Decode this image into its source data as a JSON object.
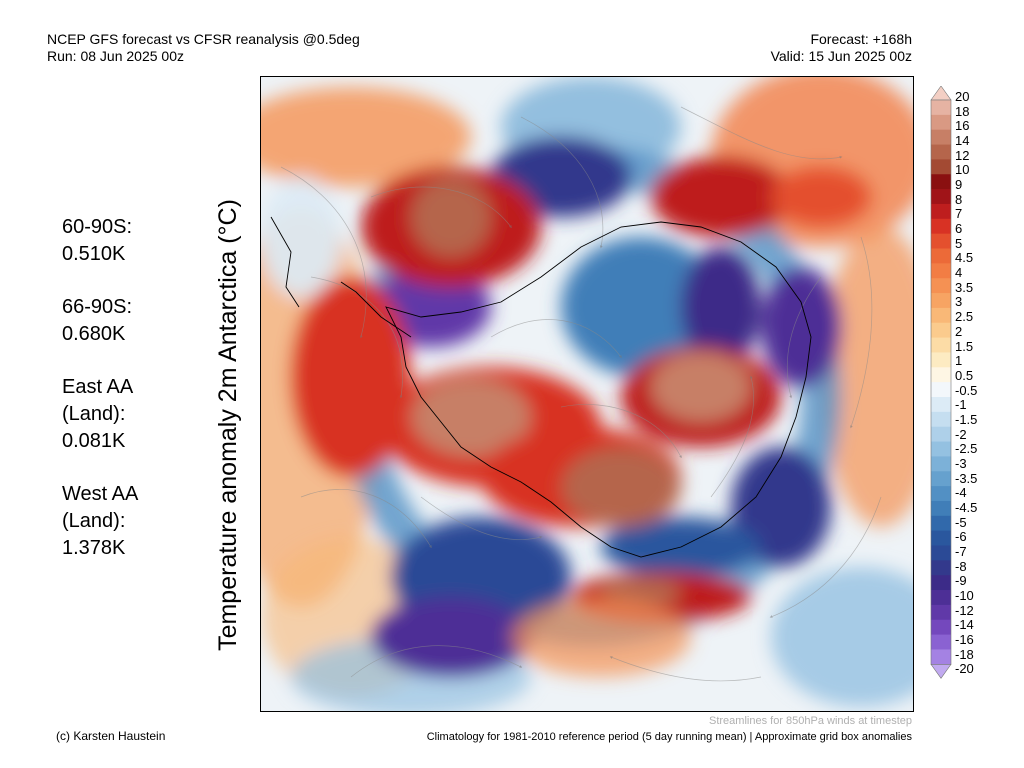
{
  "header": {
    "title": "NCEP GFS forecast vs CFSR reanalysis @0.5deg",
    "run": "Run: 08 Jun 2025 00z",
    "forecast": "Forecast: +168h",
    "valid": "Valid: 15 Jun 2025 00z"
  },
  "axis_title": "Temperature anomaly 2m Antarctica (°C)",
  "stats": [
    {
      "region": [
        "60-90S:"
      ],
      "value": "0.510K"
    },
    {
      "region": [
        "66-90S:"
      ],
      "value": "0.680K"
    },
    {
      "region": [
        "East AA",
        "(Land):"
      ],
      "value": "0.081K"
    },
    {
      "region": [
        "West AA",
        "(Land):"
      ],
      "value": "1.378K"
    }
  ],
  "colorbar": {
    "labels": [
      "20",
      "18",
      "16",
      "14",
      "12",
      "10",
      "9",
      "8",
      "7",
      "6",
      "5",
      "4.5",
      "4",
      "3.5",
      "3",
      "2.5",
      "2",
      "1.5",
      "1",
      "0.5",
      "-0.5",
      "-1",
      "-1.5",
      "-2",
      "-2.5",
      "-3",
      "-3.5",
      "-4",
      "-4.5",
      "-5",
      "-6",
      "-7",
      "-8",
      "-9",
      "-10",
      "-12",
      "-14",
      "-16",
      "-18",
      "-20"
    ],
    "colors": [
      "#f3cfc4",
      "#e6b3a3",
      "#d99983",
      "#c77f66",
      "#b5654b",
      "#a34a33",
      "#8a1010",
      "#a01418",
      "#be1e1e",
      "#d83224",
      "#e4502e",
      "#ec6a38",
      "#f27d44",
      "#f59153",
      "#f7a463",
      "#f9b877",
      "#fbcb8d",
      "#fcdca6",
      "#fdebc2",
      "#fef6e4",
      "#f3f7fb",
      "#dcebf6",
      "#c5def0",
      "#aed0e9",
      "#94c1e1",
      "#7cb1d8",
      "#66a1ce",
      "#5290c4",
      "#407eb8",
      "#3169ab",
      "#2a579e",
      "#2b4a96",
      "#33398c",
      "#3c2b88",
      "#4d2f96",
      "#6039a8",
      "#7448bd",
      "#8a62d2",
      "#a482e3",
      "#c1aaf0"
    ]
  },
  "footer": {
    "credit": "(c) Karsten Haustein",
    "note": "Streamlines for 850hPa winds at timestep",
    "climatology": "Climatology for 1981-2010 reference period (5 day running mean) | Approximate grid box anomalies"
  }
}
